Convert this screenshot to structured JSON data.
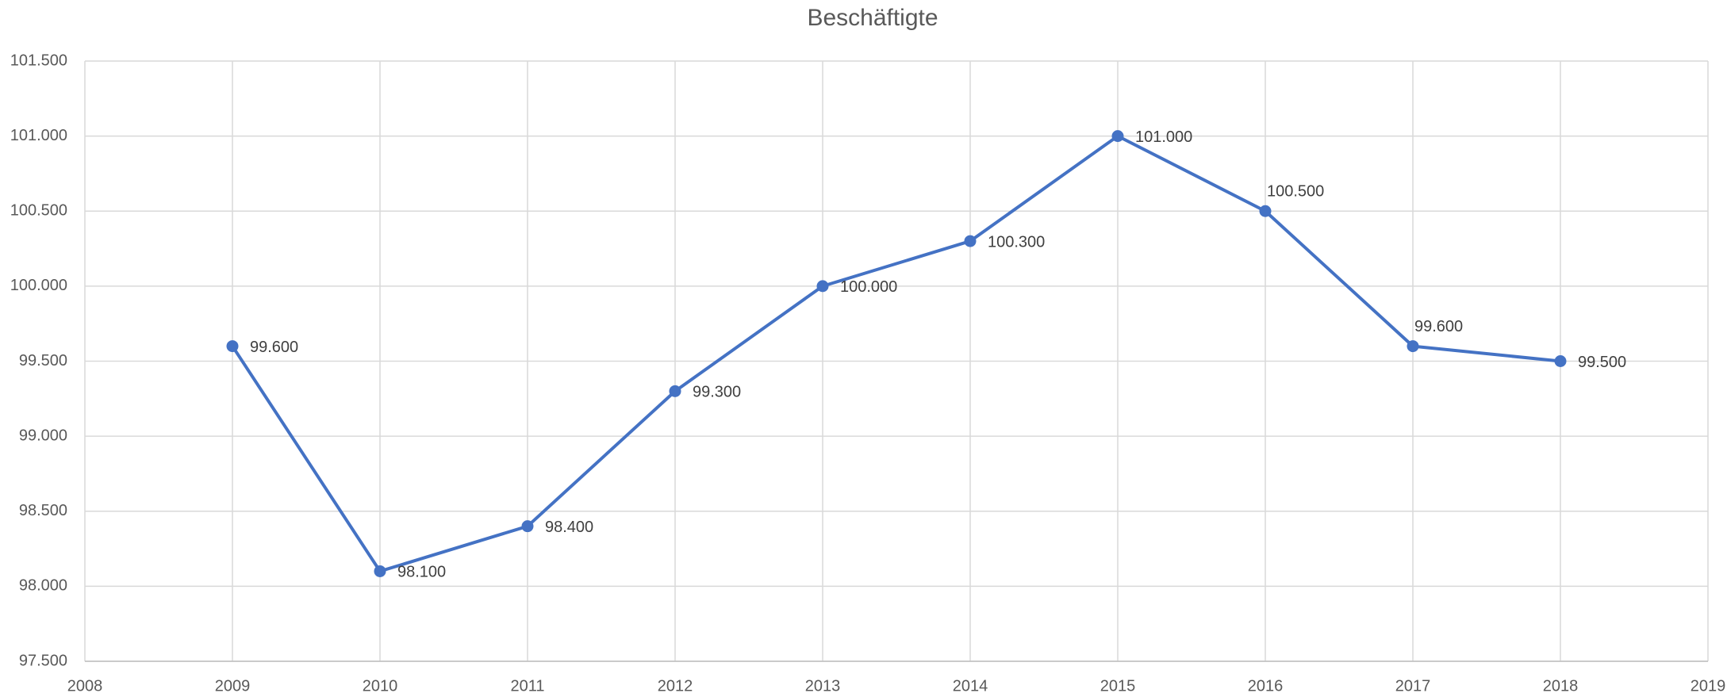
{
  "chart_data": {
    "type": "line",
    "title": "Beschäftigte",
    "x": [
      2009,
      2010,
      2011,
      2012,
      2013,
      2014,
      2015,
      2016,
      2017,
      2018
    ],
    "series": [
      {
        "name": "Beschäftigte",
        "color": "#4472c4",
        "values": [
          99600,
          98100,
          98400,
          99300,
          100000,
          100300,
          101000,
          100500,
          99600,
          99500
        ],
        "value_labels": [
          "99.600",
          "98.100",
          "98.400",
          "99.300",
          "100.000",
          "100.300",
          "101.000",
          "100.500",
          "99.600",
          "99.500"
        ]
      }
    ],
    "xlim": [
      2008,
      2019
    ],
    "xticks": [
      2008,
      2009,
      2010,
      2011,
      2012,
      2013,
      2014,
      2015,
      2016,
      2017,
      2018,
      2019
    ],
    "ylim": [
      97500,
      101500
    ],
    "yticks": [
      {
        "value": 97500,
        "label": "97.500"
      },
      {
        "value": 98000,
        "label": "98.000"
      },
      {
        "value": 98500,
        "label": "98.500"
      },
      {
        "value": 99000,
        "label": "99.000"
      },
      {
        "value": 99500,
        "label": "99.500"
      },
      {
        "value": 100000,
        "label": "100.000"
      },
      {
        "value": 100500,
        "label": "100.500"
      },
      {
        "value": 101000,
        "label": "101.000"
      },
      {
        "value": 101500,
        "label": "101.500"
      }
    ],
    "grid": true
  }
}
